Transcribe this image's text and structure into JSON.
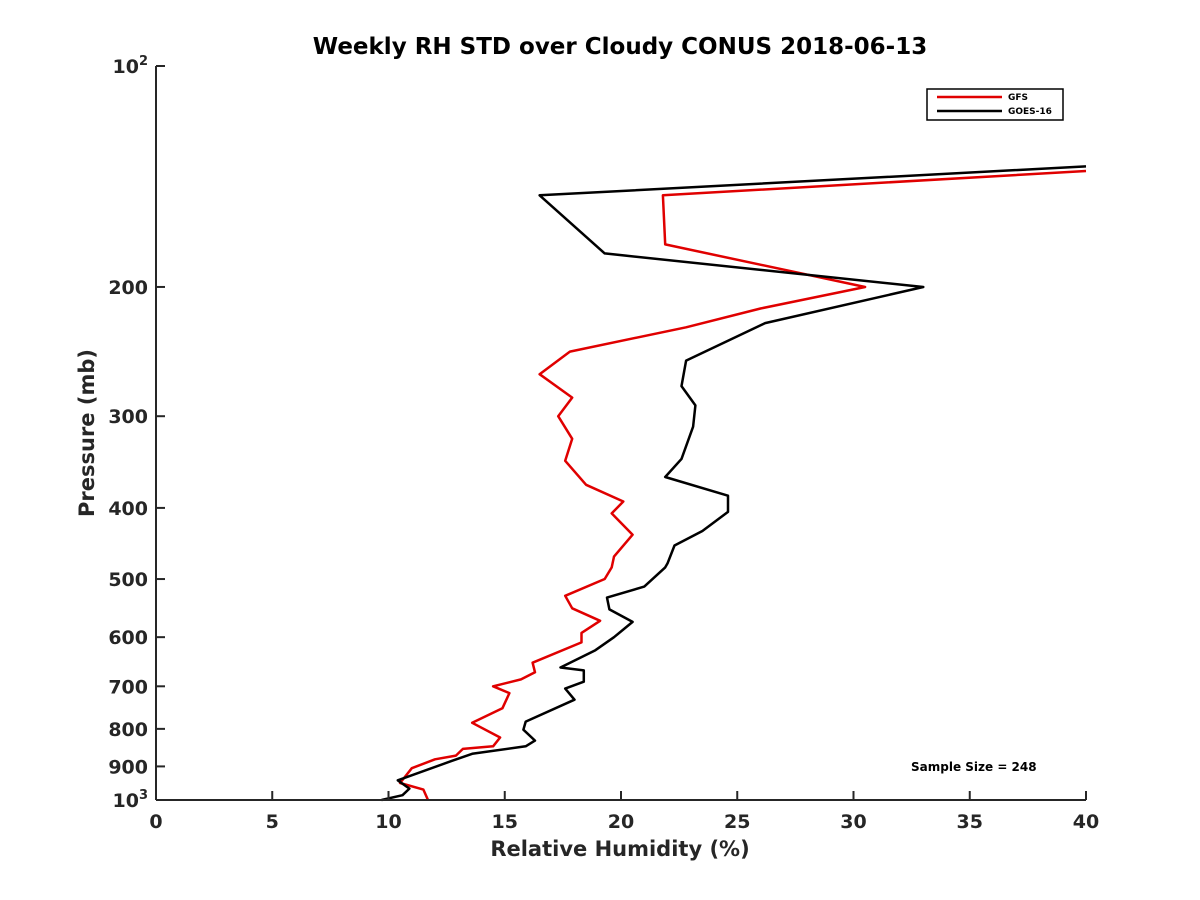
{
  "chart_data": {
    "type": "line",
    "title": "Weekly RH STD over Cloudy CONUS 2018-06-13",
    "xlabel": "Relative Humidity (%)",
    "ylabel": "Pressure (mb)",
    "xlim": [
      0,
      40
    ],
    "ylim": [
      100,
      1000
    ],
    "y_scale": "log",
    "y_reversed": true,
    "grid": false,
    "legend_position": "top-right",
    "annotation": "Sample Size = 248",
    "x_ticks": [
      0,
      5,
      10,
      15,
      20,
      25,
      30,
      35,
      40
    ],
    "x_tick_labels": [
      "0",
      "5",
      "10",
      "15",
      "20",
      "25",
      "30",
      "35",
      "40"
    ],
    "y_ticks": [
      100,
      200,
      300,
      400,
      500,
      600,
      700,
      800,
      900,
      1000
    ],
    "y_tick_labels": [
      {
        "base": "10",
        "exp": "2"
      },
      {
        "base": "200",
        "exp": ""
      },
      {
        "base": "300",
        "exp": ""
      },
      {
        "base": "400",
        "exp": ""
      },
      {
        "base": "500",
        "exp": ""
      },
      {
        "base": "600",
        "exp": ""
      },
      {
        "base": "700",
        "exp": ""
      },
      {
        "base": "800",
        "exp": ""
      },
      {
        "base": "900",
        "exp": ""
      },
      {
        "base": "10",
        "exp": "3"
      }
    ],
    "series": [
      {
        "name": "GFS",
        "color": "#e00000",
        "points": [
          [
            40.0,
            139
          ],
          [
            21.8,
            150
          ],
          [
            21.9,
            175
          ],
          [
            30.5,
            200
          ],
          [
            26.0,
            214
          ],
          [
            22.8,
            227
          ],
          [
            17.8,
            245
          ],
          [
            16.5,
            263
          ],
          [
            17.9,
            283
          ],
          [
            17.3,
            300
          ],
          [
            17.9,
            322
          ],
          [
            17.6,
            345
          ],
          [
            18.5,
            372
          ],
          [
            20.1,
            392
          ],
          [
            19.6,
            407
          ],
          [
            20.5,
            435
          ],
          [
            19.7,
            466
          ],
          [
            19.6,
            482
          ],
          [
            19.3,
            500
          ],
          [
            17.6,
            527
          ],
          [
            17.9,
            548
          ],
          [
            19.1,
            570
          ],
          [
            18.3,
            592
          ],
          [
            18.3,
            610
          ],
          [
            16.2,
            650
          ],
          [
            16.3,
            670
          ],
          [
            15.7,
            685
          ],
          [
            14.5,
            700
          ],
          [
            15.2,
            715
          ],
          [
            14.9,
            750
          ],
          [
            13.6,
            785
          ],
          [
            14.8,
            822
          ],
          [
            14.5,
            845
          ],
          [
            13.2,
            852
          ],
          [
            12.9,
            870
          ],
          [
            12.0,
            880
          ],
          [
            11.0,
            905
          ],
          [
            10.5,
            948
          ],
          [
            11.5,
            968
          ],
          [
            11.7,
            1000
          ]
        ]
      },
      {
        "name": "GOES-16",
        "color": "#000000",
        "points": [
          [
            40.0,
            137
          ],
          [
            16.5,
            150
          ],
          [
            19.3,
            180
          ],
          [
            33.0,
            200
          ],
          [
            26.2,
            224
          ],
          [
            22.8,
            252
          ],
          [
            22.6,
            273
          ],
          [
            23.2,
            290
          ],
          [
            23.1,
            310
          ],
          [
            22.6,
            343
          ],
          [
            21.9,
            363
          ],
          [
            24.6,
            385
          ],
          [
            24.6,
            405
          ],
          [
            23.5,
            430
          ],
          [
            22.3,
            450
          ],
          [
            22.0,
            476
          ],
          [
            21.9,
            482
          ],
          [
            21.0,
            512
          ],
          [
            19.4,
            530
          ],
          [
            19.5,
            550
          ],
          [
            20.5,
            572
          ],
          [
            19.7,
            600
          ],
          [
            18.9,
            625
          ],
          [
            17.4,
            660
          ],
          [
            18.4,
            666
          ],
          [
            18.4,
            690
          ],
          [
            17.6,
            705
          ],
          [
            18.0,
            730
          ],
          [
            15.9,
            782
          ],
          [
            15.8,
            802
          ],
          [
            16.3,
            830
          ],
          [
            15.9,
            845
          ],
          [
            13.6,
            865
          ],
          [
            12.7,
            885
          ],
          [
            10.4,
            940
          ],
          [
            10.9,
            965
          ],
          [
            10.6,
            985
          ],
          [
            9.7,
            1000
          ]
        ]
      }
    ]
  }
}
